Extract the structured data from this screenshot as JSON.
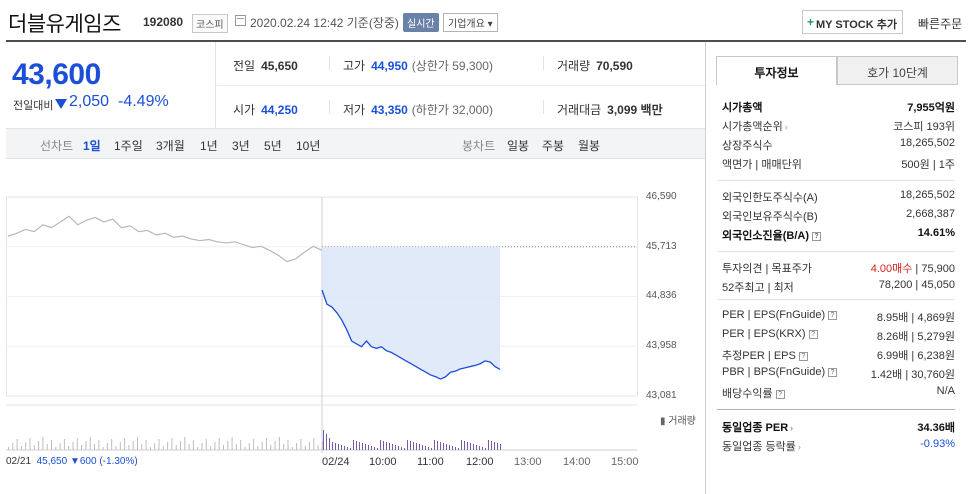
{
  "header": {
    "stock_name": "더블유게임즈",
    "stock_code": "192080",
    "market_badge": "코스피",
    "datetime": "2020.02.24 12:42 기준(장중)",
    "realtime_badge": "실시간",
    "company_overview": "기업개요",
    "mystock_label": "MY STOCK 추가",
    "quick_order": "빠른주문"
  },
  "price": {
    "current": "43,600",
    "change_label": "전일대비",
    "change": "2,050",
    "change_pct": "-4.49%"
  },
  "stats": {
    "prev_label": "전일",
    "prev": "45,650",
    "high_label": "고가",
    "high": "44,950",
    "upper_limit": "(상한가 59,300)",
    "volume_label": "거래량",
    "volume": "70,590",
    "open_label": "시가",
    "open": "44,250",
    "low_label": "저가",
    "low": "43,350",
    "lower_limit": "(하한가 32,000)",
    "amount_label": "거래대금",
    "amount": "3,099 백만"
  },
  "period": {
    "line_label": "선차트",
    "line_options": [
      "1일",
      "1주일",
      "3개월",
      "1년",
      "3년",
      "5년",
      "10년"
    ],
    "candle_label": "봉차트",
    "candle_options": [
      "일봉",
      "주봉",
      "월봉"
    ]
  },
  "chart_data": {
    "type": "line",
    "y_ticks": [
      "46,590",
      "45,713",
      "44,836",
      "43,958",
      "43,081"
    ],
    "ylim": [
      43081,
      46590
    ],
    "prev_close": 45713,
    "volume_label": "거래량",
    "time_labels": [
      "02/21",
      "02/24",
      "10:00",
      "11:00",
      "12:00",
      "13:00",
      "14:00",
      "15:00"
    ],
    "prev_day_summary": {
      "price": "45,650",
      "change": "600",
      "pct": "(-1.30%)"
    },
    "prev_day_series": [
      45900,
      45950,
      46020,
      45980,
      46100,
      46050,
      46150,
      46250,
      46100,
      46180,
      46230,
      46150,
      46200,
      46050,
      46080,
      45980,
      46000,
      45920,
      45950,
      45880,
      45900,
      45850,
      45820,
      45840,
      45800,
      45780,
      45800,
      45750,
      45700,
      45720,
      45650,
      45560,
      45450,
      45500,
      45620,
      45720,
      45650
    ],
    "today_series": [
      44950,
      44700,
      44650,
      44550,
      44420,
      44250,
      44050,
      44000,
      43950,
      44050,
      43950,
      43920,
      43950,
      43880,
      43850,
      43800,
      43750,
      43700,
      43650,
      43600,
      43550,
      43500,
      43450,
      43420,
      43380,
      43420,
      43500,
      43520,
      43560,
      43580,
      43600,
      43620,
      43650,
      43700,
      43680,
      43600,
      43550
    ]
  },
  "right": {
    "tab_active": "투자정보",
    "tab_other": "호가 10단계",
    "g1": [
      {
        "l": "시가총액",
        "r": "7,955억원",
        "bold": true
      },
      {
        "l": "시가총액순위",
        "r": "코스피 193위"
      },
      {
        "l": "상장주식수",
        "r": "18,265,502"
      },
      {
        "l": "액면가 | 매매단위",
        "r": "500원 | 1주"
      }
    ],
    "g2": [
      {
        "l": "외국인한도주식수(A)",
        "r": "18,265,502"
      },
      {
        "l": "외국인보유주식수(B)",
        "r": "2,668,387"
      },
      {
        "l": "외국인소진율(B/A)",
        "r": "14.61%",
        "bold": true
      }
    ],
    "g3": [
      {
        "l": "투자의견 | 목표주가",
        "r1": "4.00매수",
        "r2": " | 75,900"
      },
      {
        "l": "52주최고 | 최저",
        "r": "78,200 | 45,050"
      }
    ],
    "g4": [
      {
        "l": "PER | EPS(FnGuide)",
        "r": "8.95배 | 4,869원"
      },
      {
        "l": "PER | EPS(KRX)",
        "r": "8.26배 | 5,279원"
      },
      {
        "l": "추정PER | EPS",
        "r": "6.99배 | 6,238원"
      },
      {
        "l": "PBR | BPS(FnGuide)",
        "r": "1.42배 | 30,760원"
      },
      {
        "l": "배당수익률",
        "r": "N/A"
      }
    ],
    "g5": [
      {
        "l": "동일업종 PER",
        "r": "34.36배"
      },
      {
        "l": "동일업종 등락률",
        "r": "-0.93%"
      }
    ]
  }
}
